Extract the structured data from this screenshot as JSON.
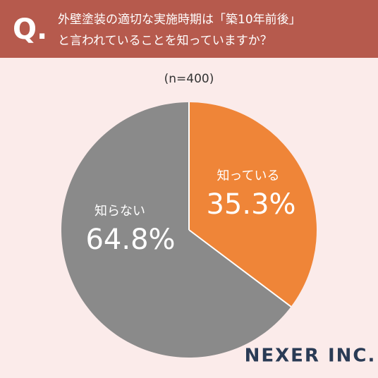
{
  "chart_data": {
    "type": "pie",
    "title_marker": "Q.",
    "title": [
      "外壁塗装の適切な実施時期は「築10年前後」",
      "と言われていることを知っていますか？"
    ],
    "subtitle": "(n=400)",
    "categories": [
      "知っている",
      "知らない"
    ],
    "values": [
      35.3,
      64.8
    ],
    "value_labels": [
      "35.3%",
      "64.8%"
    ],
    "colors": [
      "#ef8538",
      "#8a8a8a"
    ],
    "brand": "NEXER INC."
  }
}
